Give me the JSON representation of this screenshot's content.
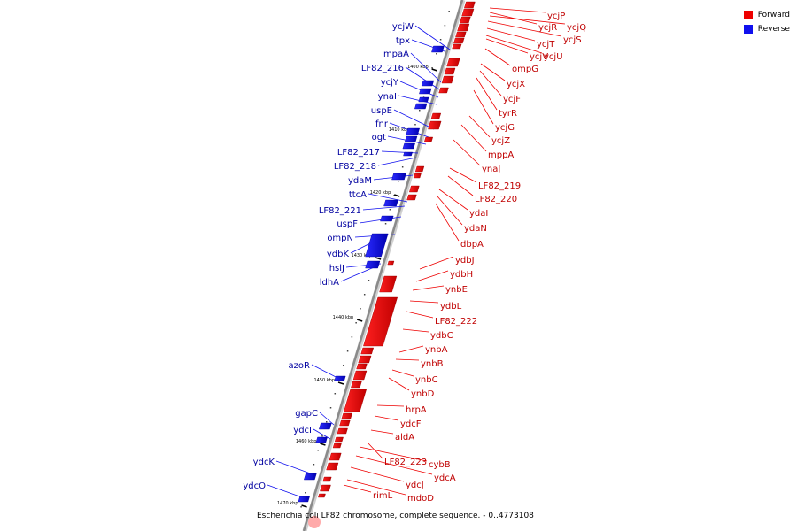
{
  "legend": {
    "forward_label": "Forward",
    "forward_color": "#ee0000",
    "reverse_label": "Reverse",
    "reverse_color": "#1010ee"
  },
  "caption": "Escherichia coli LF82 chromosome, complete sequence. - 0..4773108",
  "ticks": [
    "1400 kbp",
    "1410 kbp",
    "1420 kbp",
    "1430 kbp",
    "1440 kbp",
    "1450 kbp",
    "1460 kbp",
    "1470 kbp"
  ],
  "forward_genes": [
    "ycjP",
    "ycjR",
    "ycjQ",
    "ycjS",
    "ycjT",
    "ycjV",
    "ycjU",
    "ompG",
    "ycjX",
    "ycjF",
    "tyrR",
    "ycjG",
    "ycjZ",
    "mppA",
    "ynaJ",
    "LF82_219",
    "LF82_220",
    "ydaI",
    "ydaN",
    "dbpA",
    "ydbJ",
    "ydbH",
    "ynbE",
    "ydbL",
    "LF82_222",
    "ydbC",
    "ynbA",
    "ynbB",
    "ynbC",
    "ynbD",
    "hrpA",
    "ydcF",
    "aldA",
    "LF82_223",
    "cybB",
    "ydcA",
    "ydcJ",
    "mdoD",
    "rimL"
  ],
  "reverse_genes": [
    "ycjW",
    "tpx",
    "mpaA",
    "LF82_216",
    "ycjY",
    "ynaI",
    "uspE",
    "fnr",
    "ogt",
    "LF82_217",
    "LF82_218",
    "ydaM",
    "ttcA",
    "LF82_221",
    "uspF",
    "ompN",
    "ydbK",
    "hslJ",
    "ldhA",
    "azoR",
    "gapC",
    "ydcI",
    "ydcK",
    "ydcO"
  ]
}
